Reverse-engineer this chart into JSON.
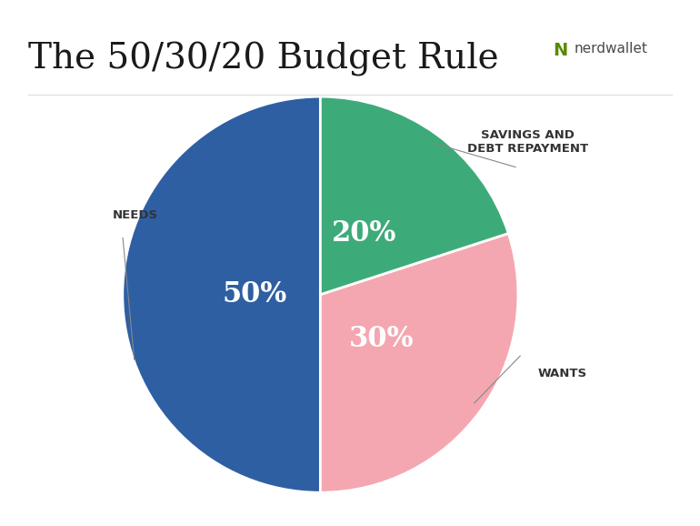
{
  "title": "The 50/30/20 Budget Rule",
  "slices": [
    50,
    20,
    30
  ],
  "labels": [
    "NEEDS",
    "SAVINGS AND\nDEBT REPAYMENT",
    "WANTS"
  ],
  "pct_labels": [
    "50%",
    "20%",
    "30%"
  ],
  "colors": [
    "#2E5FA3",
    "#3DAA7A",
    "#F4A7B0"
  ],
  "start_angle": 90,
  "background_color": "#ffffff",
  "title_fontsize": 28,
  "label_fontsize": 9.5,
  "pct_fontsize": 22,
  "pct_color": "#ffffff",
  "label_color": "#333333",
  "separator_color": "#dddddd"
}
